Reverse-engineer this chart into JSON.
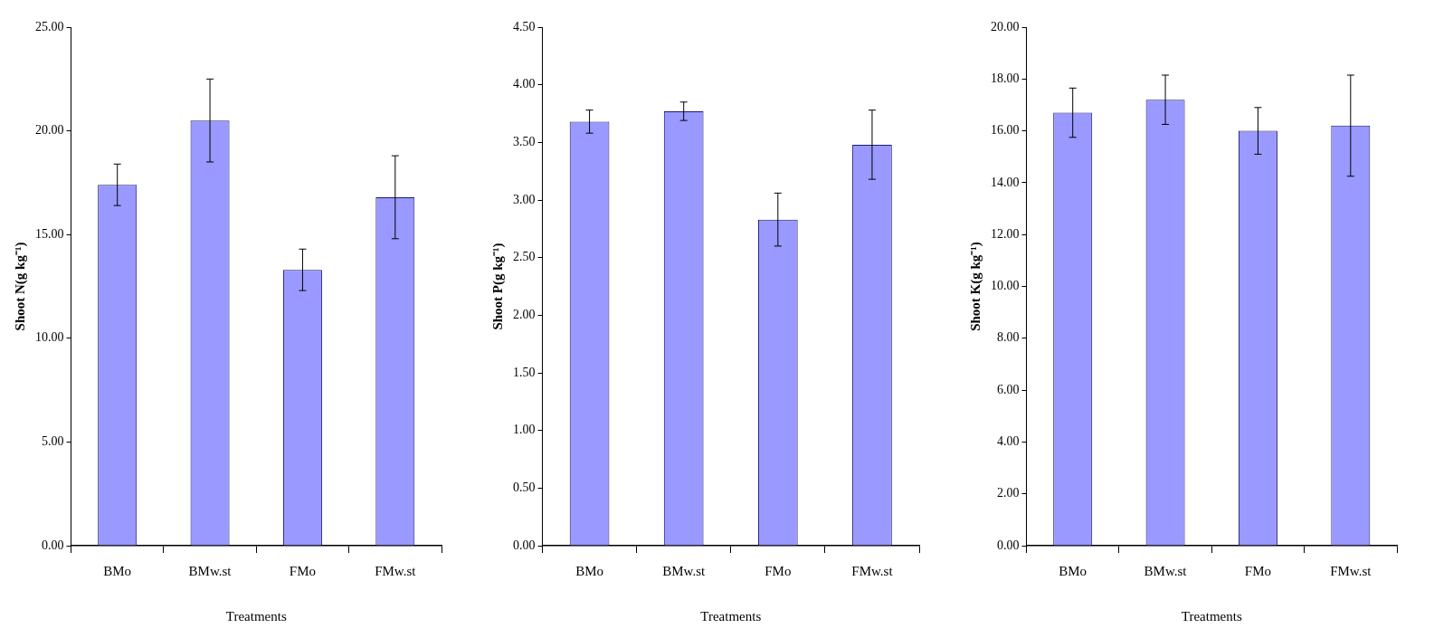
{
  "chart_data": [
    {
      "type": "bar",
      "xlabel": "Treatments",
      "ylabel": "Shoot N(g kg⁻¹)",
      "categories": [
        "BMo",
        "BMw.st",
        "FMo",
        "FMw.st"
      ],
      "values": [
        17.4,
        20.5,
        13.3,
        16.8
      ],
      "errors": [
        1.0,
        2.0,
        1.0,
        2.0
      ],
      "color": "#9999ff",
      "ylim": [
        0,
        25
      ],
      "yticks": [
        {
          "value": 0,
          "label": "0.00"
        },
        {
          "value": 5,
          "label": "5.00"
        },
        {
          "value": 10,
          "label": "10.00"
        },
        {
          "value": 15,
          "label": "15.00"
        },
        {
          "value": 20,
          "label": "20.00"
        },
        {
          "value": 25,
          "label": "25.00"
        }
      ],
      "grid": false,
      "legend": false
    },
    {
      "type": "bar",
      "xlabel": "Treatments",
      "ylabel": "Shoot P(g kg⁻¹)",
      "categories": [
        "BMo",
        "BMw.st",
        "FMo",
        "FMw.st"
      ],
      "values": [
        3.68,
        3.77,
        2.83,
        3.48
      ],
      "errors": [
        0.1,
        0.08,
        0.23,
        0.3
      ],
      "color": "#9999ff",
      "ylim": [
        0,
        4.5
      ],
      "yticks": [
        {
          "value": 0,
          "label": "0.00"
        },
        {
          "value": 0.5,
          "label": "0.50"
        },
        {
          "value": 1,
          "label": "1.00"
        },
        {
          "value": 1.5,
          "label": "1.50"
        },
        {
          "value": 2,
          "label": "2.00"
        },
        {
          "value": 2.5,
          "label": "2.50"
        },
        {
          "value": 3,
          "label": "3.00"
        },
        {
          "value": 3.5,
          "label": "3.50"
        },
        {
          "value": 4,
          "label": "4.00"
        },
        {
          "value": 4.5,
          "label": "4.50"
        }
      ],
      "grid": false,
      "legend": false
    },
    {
      "type": "bar",
      "xlabel": "Treatments",
      "ylabel": "Shoot K(g kg⁻¹)",
      "categories": [
        "BMo",
        "BMw.st",
        "FMo",
        "FMw.st"
      ],
      "values": [
        16.7,
        17.2,
        16.0,
        16.2
      ],
      "errors": [
        0.95,
        0.95,
        0.9,
        1.95
      ],
      "color": "#9999ff",
      "ylim": [
        0,
        20
      ],
      "yticks": [
        {
          "value": 0,
          "label": "0.00"
        },
        {
          "value": 2,
          "label": "2.00"
        },
        {
          "value": 4,
          "label": "4.00"
        },
        {
          "value": 6,
          "label": "6.00"
        },
        {
          "value": 8,
          "label": "8.00"
        },
        {
          "value": 10,
          "label": "10.00"
        },
        {
          "value": 12,
          "label": "12.00"
        },
        {
          "value": 14,
          "label": "14.00"
        },
        {
          "value": 16,
          "label": "16.00"
        },
        {
          "value": 18,
          "label": "18.00"
        },
        {
          "value": 20,
          "label": "20.00"
        }
      ],
      "grid": false,
      "legend": false
    }
  ]
}
